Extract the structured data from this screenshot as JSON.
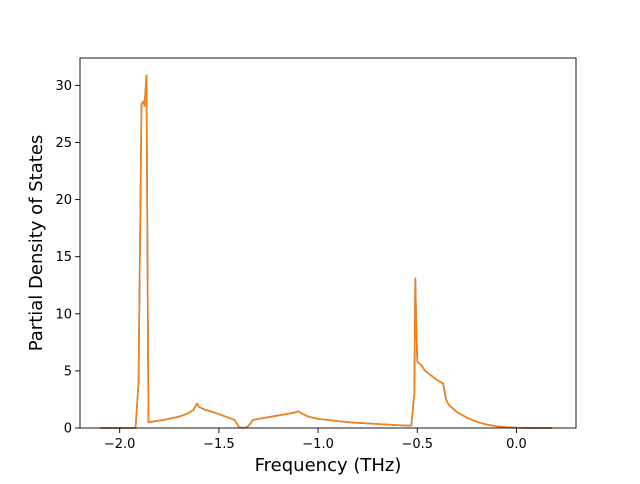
{
  "chart_data": {
    "type": "line",
    "title": "",
    "xlabel": "Frequency (THz)",
    "ylabel": "Partial Density of States",
    "xlim": [
      -2.2,
      0.3
    ],
    "ylim": [
      0,
      32.4
    ],
    "xticks": [
      {
        "value": -2.0,
        "label": "−2.0"
      },
      {
        "value": -1.5,
        "label": "−1.5"
      },
      {
        "value": -1.0,
        "label": "−1.0"
      },
      {
        "value": -0.5,
        "label": "−0.5"
      },
      {
        "value": 0.0,
        "label": "0.0"
      }
    ],
    "yticks": [
      {
        "value": 0,
        "label": "0"
      },
      {
        "value": 5,
        "label": "5"
      },
      {
        "value": 10,
        "label": "10"
      },
      {
        "value": 15,
        "label": "15"
      },
      {
        "value": 20,
        "label": "20"
      },
      {
        "value": 25,
        "label": "25"
      },
      {
        "value": 30,
        "label": "30"
      }
    ],
    "grid": false,
    "legend": "none",
    "series": [
      {
        "color": "#1f77b4",
        "points": [
          [
            -2.1,
            0
          ],
          [
            -1.92,
            0
          ],
          [
            -1.905,
            4
          ],
          [
            -1.89,
            28.4
          ],
          [
            -1.88,
            28.6
          ],
          [
            -1.875,
            28.2
          ],
          [
            -1.865,
            30.9
          ],
          [
            -1.855,
            0.5
          ],
          [
            -1.82,
            0.6
          ],
          [
            -1.78,
            0.7
          ],
          [
            -1.74,
            0.85
          ],
          [
            -1.7,
            1.0
          ],
          [
            -1.66,
            1.25
          ],
          [
            -1.63,
            1.55
          ],
          [
            -1.61,
            2.15
          ],
          [
            -1.6,
            1.85
          ],
          [
            -1.57,
            1.6
          ],
          [
            -1.53,
            1.4
          ],
          [
            -1.49,
            1.15
          ],
          [
            -1.45,
            0.9
          ],
          [
            -1.42,
            0.7
          ],
          [
            -1.4,
            0.1
          ],
          [
            -1.38,
            0.0
          ],
          [
            -1.36,
            0.05
          ],
          [
            -1.345,
            0.3
          ],
          [
            -1.33,
            0.7
          ],
          [
            -1.3,
            0.8
          ],
          [
            -1.25,
            0.95
          ],
          [
            -1.2,
            1.1
          ],
          [
            -1.15,
            1.25
          ],
          [
            -1.12,
            1.35
          ],
          [
            -1.1,
            1.45
          ],
          [
            -1.08,
            1.25
          ],
          [
            -1.05,
            1.0
          ],
          [
            -1.0,
            0.8
          ],
          [
            -0.95,
            0.7
          ],
          [
            -0.9,
            0.6
          ],
          [
            -0.85,
            0.52
          ],
          [
            -0.8,
            0.45
          ],
          [
            -0.75,
            0.4
          ],
          [
            -0.7,
            0.35
          ],
          [
            -0.65,
            0.3
          ],
          [
            -0.6,
            0.25
          ],
          [
            -0.53,
            0.2
          ],
          [
            -0.515,
            3.0
          ],
          [
            -0.51,
            13.1
          ],
          [
            -0.505,
            9.0
          ],
          [
            -0.5,
            5.8
          ],
          [
            -0.48,
            5.5
          ],
          [
            -0.46,
            5.0
          ],
          [
            -0.43,
            4.6
          ],
          [
            -0.4,
            4.2
          ],
          [
            -0.37,
            3.9
          ],
          [
            -0.355,
            2.5
          ],
          [
            -0.34,
            2.0
          ],
          [
            -0.3,
            1.4
          ],
          [
            -0.25,
            0.9
          ],
          [
            -0.2,
            0.55
          ],
          [
            -0.15,
            0.3
          ],
          [
            -0.1,
            0.15
          ],
          [
            -0.05,
            0.07
          ],
          [
            0.0,
            0.03
          ],
          [
            0.05,
            0.01
          ],
          [
            0.1,
            0.0
          ],
          [
            0.18,
            0.0
          ]
        ]
      },
      {
        "color": "#ff7f0e",
        "points": [
          [
            -2.1,
            0
          ],
          [
            -1.92,
            0
          ],
          [
            -1.905,
            4
          ],
          [
            -1.89,
            28.4
          ],
          [
            -1.88,
            28.6
          ],
          [
            -1.875,
            28.2
          ],
          [
            -1.865,
            30.9
          ],
          [
            -1.855,
            0.5
          ],
          [
            -1.82,
            0.6
          ],
          [
            -1.78,
            0.7
          ],
          [
            -1.74,
            0.85
          ],
          [
            -1.7,
            1.0
          ],
          [
            -1.66,
            1.25
          ],
          [
            -1.63,
            1.55
          ],
          [
            -1.61,
            2.15
          ],
          [
            -1.6,
            1.85
          ],
          [
            -1.57,
            1.6
          ],
          [
            -1.53,
            1.4
          ],
          [
            -1.49,
            1.15
          ],
          [
            -1.45,
            0.9
          ],
          [
            -1.42,
            0.7
          ],
          [
            -1.4,
            0.1
          ],
          [
            -1.38,
            0.0
          ],
          [
            -1.36,
            0.05
          ],
          [
            -1.345,
            0.3
          ],
          [
            -1.33,
            0.7
          ],
          [
            -1.3,
            0.8
          ],
          [
            -1.25,
            0.95
          ],
          [
            -1.2,
            1.1
          ],
          [
            -1.15,
            1.25
          ],
          [
            -1.12,
            1.35
          ],
          [
            -1.1,
            1.45
          ],
          [
            -1.08,
            1.25
          ],
          [
            -1.05,
            1.0
          ],
          [
            -1.0,
            0.8
          ],
          [
            -0.95,
            0.7
          ],
          [
            -0.9,
            0.6
          ],
          [
            -0.85,
            0.52
          ],
          [
            -0.8,
            0.45
          ],
          [
            -0.75,
            0.4
          ],
          [
            -0.7,
            0.35
          ],
          [
            -0.65,
            0.3
          ],
          [
            -0.6,
            0.25
          ],
          [
            -0.53,
            0.2
          ],
          [
            -0.515,
            3.0
          ],
          [
            -0.51,
            13.1
          ],
          [
            -0.505,
            9.0
          ],
          [
            -0.5,
            5.8
          ],
          [
            -0.48,
            5.5
          ],
          [
            -0.46,
            5.0
          ],
          [
            -0.43,
            4.6
          ],
          [
            -0.4,
            4.2
          ],
          [
            -0.37,
            3.9
          ],
          [
            -0.355,
            2.5
          ],
          [
            -0.34,
            2.0
          ],
          [
            -0.3,
            1.4
          ],
          [
            -0.25,
            0.9
          ],
          [
            -0.2,
            0.55
          ],
          [
            -0.15,
            0.3
          ],
          [
            -0.1,
            0.15
          ],
          [
            -0.05,
            0.07
          ],
          [
            0.0,
            0.03
          ],
          [
            0.05,
            0.01
          ],
          [
            0.1,
            0.0
          ],
          [
            0.18,
            0.0
          ]
        ]
      }
    ]
  }
}
